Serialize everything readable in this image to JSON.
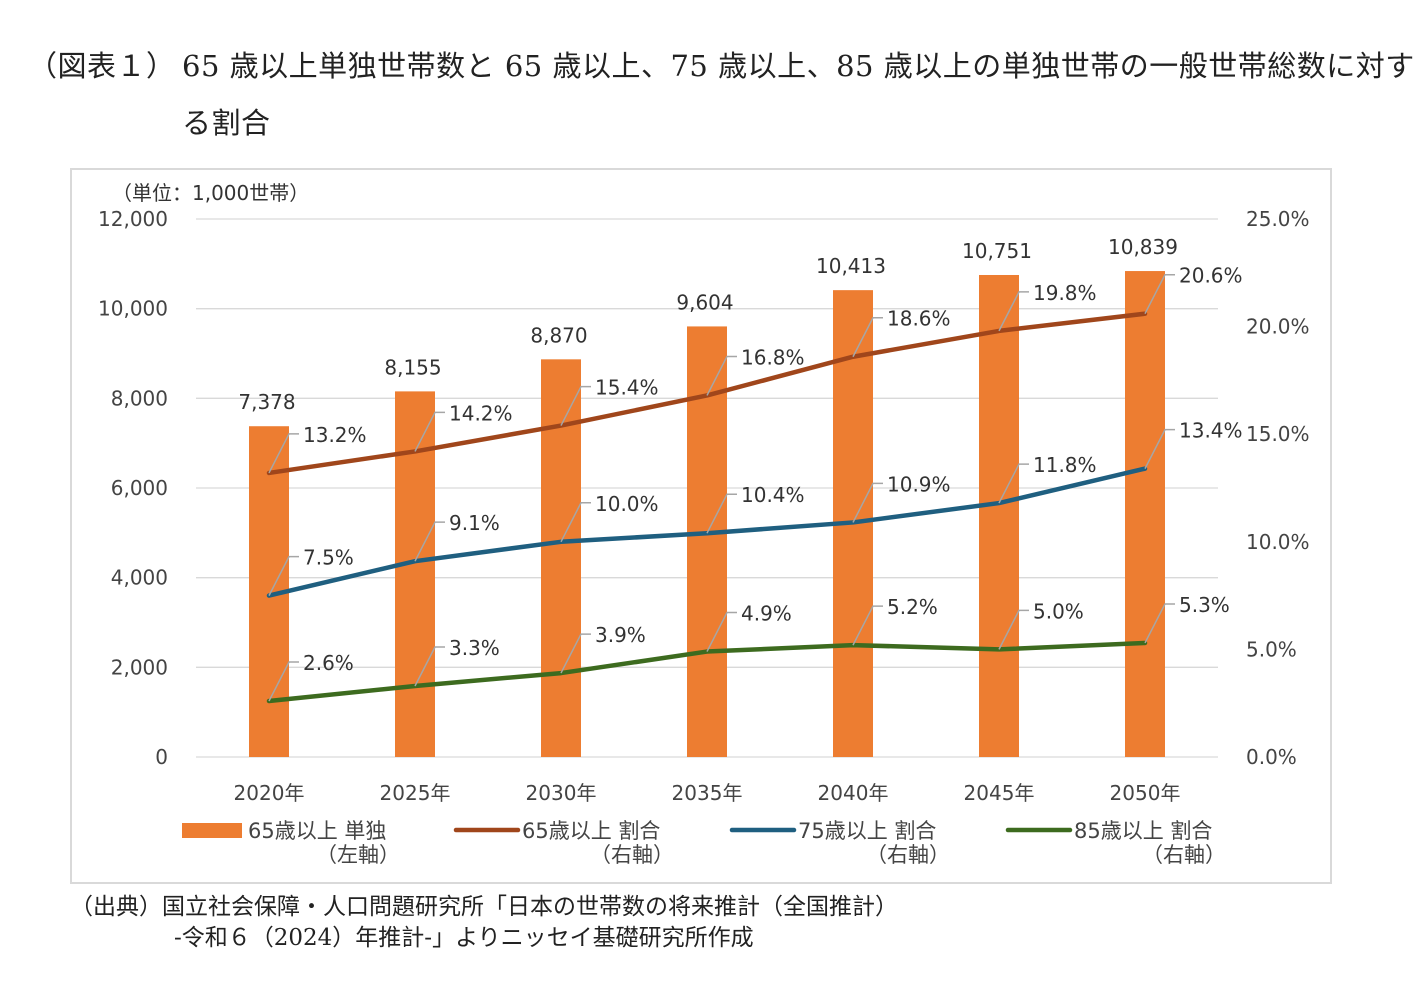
{
  "title": {
    "prefix": "（図表１）",
    "text": "65 歳以上単独世帯数と 65 歳以上、75 歳以上、85 歳以上の単独世帯の一般世帯総数に対する割合"
  },
  "chart_data": {
    "type": "bar+line",
    "unit_label": "（単位：1,000世帯）",
    "categories": [
      "2020年",
      "2025年",
      "2030年",
      "2035年",
      "2040年",
      "2045年",
      "2050年"
    ],
    "left_axis": {
      "ylim": [
        0,
        12000
      ],
      "ticks": [
        "0",
        "2,000",
        "4,000",
        "6,000",
        "8,000",
        "10,000",
        "12,000"
      ]
    },
    "right_axis": {
      "ylim": [
        0,
        25
      ],
      "ticks": [
        "0.0%",
        "5.0%",
        "10.0%",
        "15.0%",
        "20.0%",
        "25.0%"
      ]
    },
    "bars": {
      "name": "65歳以上 単独（左軸）",
      "color": "#ed7d31",
      "values": [
        7378,
        8155,
        8870,
        9604,
        10413,
        10751,
        10839
      ],
      "labels": [
        "7,378",
        "8,155",
        "8,870",
        "9,604",
        "10,413",
        "10,751",
        "10,839"
      ]
    },
    "series": [
      {
        "name": "65歳以上 割合（右軸）",
        "color": "#a0461b",
        "values": [
          13.2,
          14.2,
          15.4,
          16.8,
          18.6,
          19.8,
          20.6
        ],
        "labels": [
          "13.2%",
          "14.2%",
          "15.4%",
          "16.8%",
          "18.6%",
          "19.8%",
          "20.6%"
        ]
      },
      {
        "name": "75歳以上 割合（右軸）",
        "color": "#1f5f80",
        "values": [
          7.5,
          9.1,
          10.0,
          10.4,
          10.9,
          11.8,
          13.4
        ],
        "labels": [
          "7.5%",
          "9.1%",
          "10.0%",
          "10.4%",
          "10.9%",
          "11.8%",
          "13.4%"
        ]
      },
      {
        "name": "85歳以上 割合（右軸）",
        "color": "#3d6b1f",
        "values": [
          2.6,
          3.3,
          3.9,
          4.9,
          5.2,
          5.0,
          5.3
        ],
        "labels": [
          "2.6%",
          "3.3%",
          "3.9%",
          "4.9%",
          "5.2%",
          "5.0%",
          "5.3%"
        ]
      }
    ],
    "legend": [
      {
        "line1": "65歳以上 単独",
        "line2": "（左軸）",
        "kind": "bar",
        "color": "#ed7d31"
      },
      {
        "line1": "65歳以上 割合",
        "line2": "（右軸）",
        "kind": "line",
        "color": "#a0461b"
      },
      {
        "line1": "75歳以上 割合",
        "line2": "（右軸）",
        "kind": "line",
        "color": "#1f5f80"
      },
      {
        "line1": "85歳以上 割合",
        "line2": "（右軸）",
        "kind": "line",
        "color": "#3d6b1f"
      }
    ],
    "grid": true,
    "legend_position": "bottom"
  },
  "source": {
    "line1": "（出典）国立社会保障・人口問題研究所「日本の世帯数の将来推計（全国推計）",
    "line2": "-令和６（2024）年推計-」よりニッセイ基礎研究所作成"
  }
}
